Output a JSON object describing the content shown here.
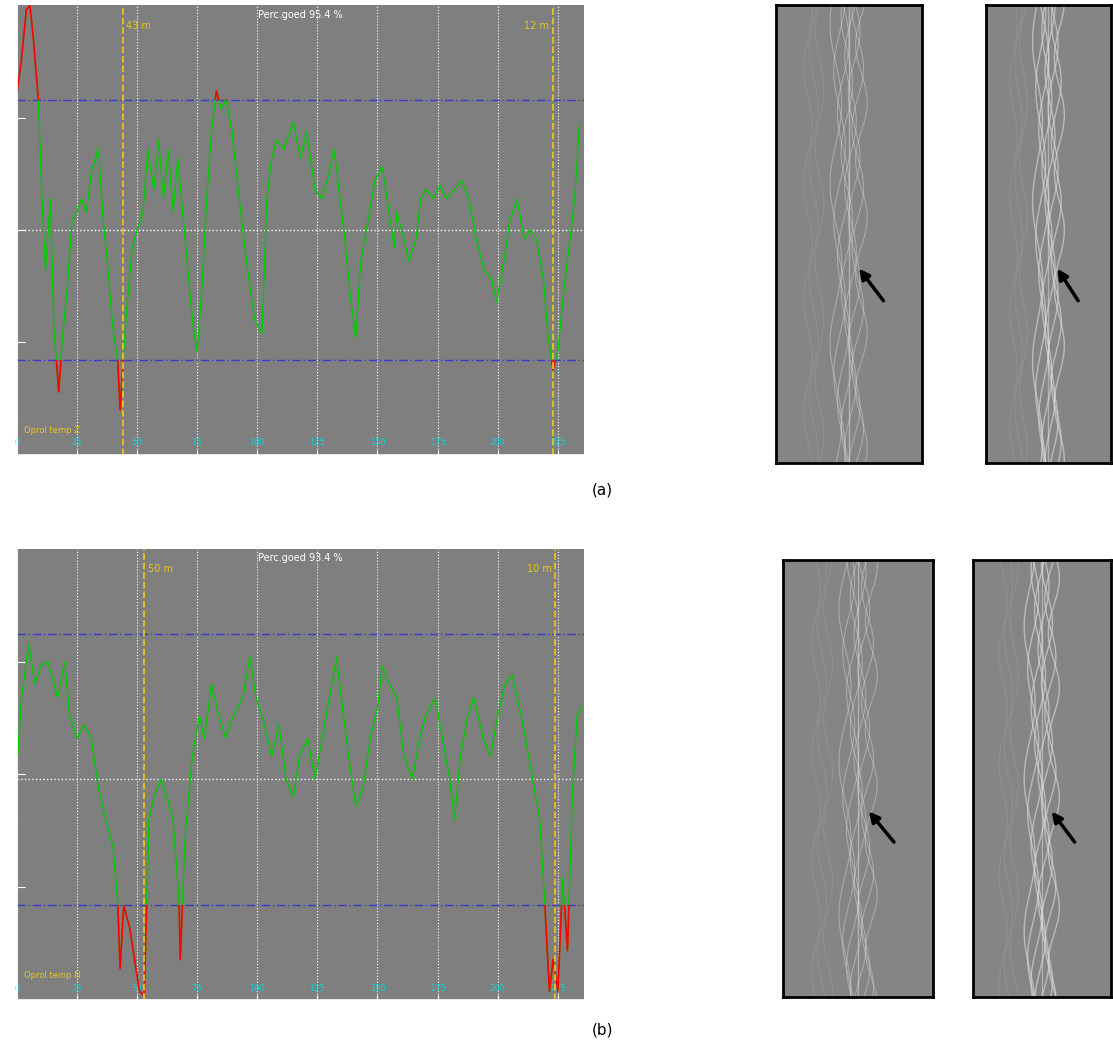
{
  "panel_labels": [
    "(a)",
    "(b)"
  ],
  "chart_data": [
    {
      "type": "line",
      "title": "Perc.goed 95.4 %",
      "corner_label": "Oprol temp Z",
      "x": [
        0,
        2,
        4,
        5.5,
        7,
        9,
        10.5,
        12,
        14,
        15.5,
        17.5,
        19,
        21,
        23,
        25,
        27,
        29,
        31,
        34,
        36,
        38,
        40,
        42,
        43,
        44.5,
        46,
        48,
        50,
        52.5,
        54.5,
        57,
        59,
        61,
        63,
        65,
        67,
        69,
        71.5,
        73.5,
        75,
        77,
        79,
        81,
        83,
        85,
        87,
        89.5,
        92.5,
        96,
        99,
        102,
        104,
        106,
        108,
        111,
        115,
        118,
        120.5,
        124,
        127,
        130,
        132,
        136,
        139,
        141,
        143,
        146,
        149,
        152,
        154,
        157,
        158,
        161,
        163,
        166,
        168,
        170,
        173.5,
        176,
        178.5,
        182,
        185,
        188,
        191,
        194.5,
        197.5,
        199.5,
        202.5,
        205,
        208,
        211,
        213.5,
        216,
        219,
        221,
        223,
        225,
        227,
        230,
        232,
        234
      ],
      "values": [
        80,
        88,
        99,
        100,
        92,
        79,
        57,
        41,
        57,
        28,
        14,
        26,
        37,
        52,
        54,
        57,
        54,
        63,
        68,
        52,
        41,
        28,
        21,
        10,
        23,
        34,
        46,
        50,
        54,
        68,
        59,
        70,
        57,
        68,
        54,
        66,
        54,
        39,
        28,
        23,
        37,
        57,
        72,
        81,
        77,
        79,
        72,
        57,
        41,
        30,
        27,
        57,
        66,
        70,
        68,
        74,
        66,
        72,
        59,
        57,
        63,
        68,
        50,
        34,
        26,
        43,
        52,
        61,
        64,
        57,
        46,
        54,
        48,
        43,
        48,
        57,
        59,
        57,
        60,
        57,
        59,
        61,
        57,
        48,
        41,
        39,
        34,
        43,
        52,
        57,
        48,
        50,
        48,
        39,
        26,
        19,
        23,
        34,
        48,
        57,
        74
      ],
      "color": "#00cc00",
      "alert_color": "#ff0000",
      "upper_limit": 79,
      "lower_limit": 21,
      "limit_color": "#3a3ad0",
      "reference": 50,
      "markers": [
        {
          "x": 44,
          "text": "43 m"
        },
        {
          "x": 223,
          "text": "12 m"
        }
      ],
      "marker_color": "#e6c619",
      "xlim": [
        0,
        236
      ],
      "xticks": [
        0,
        25,
        50,
        75,
        100,
        125,
        150,
        175,
        200,
        225
      ],
      "ylim": [
        0,
        100
      ],
      "yticks": [
        25,
        50,
        75
      ],
      "tick_labels": "x",
      "grid": true
    },
    {
      "type": "line",
      "title": "Perc.goed 93.4 %",
      "corner_label": "Oprol temp N",
      "x": [
        0,
        2,
        5,
        7.5,
        10,
        13,
        17,
        20,
        22,
        25,
        28,
        31,
        34,
        37,
        40,
        42,
        43,
        44.5,
        47,
        49,
        51,
        53,
        55,
        57,
        60,
        62.5,
        65,
        67.5,
        68,
        70,
        73,
        76,
        78,
        81,
        84,
        87,
        90,
        94,
        97,
        99.5,
        103,
        106,
        109,
        112,
        115,
        117.5,
        121,
        124,
        127,
        130,
        133,
        135,
        138,
        141,
        144,
        147,
        150,
        152,
        155,
        158,
        161,
        164.5,
        167.5,
        170,
        174,
        177,
        180,
        182,
        184.5,
        187.5,
        190,
        194,
        197,
        200,
        203,
        206,
        209,
        211.5,
        214.5,
        217.5,
        219.5,
        221.5,
        223,
        225,
        227,
        229,
        231,
        233,
        235
      ],
      "values": [
        51,
        67,
        79,
        70,
        74,
        75,
        67,
        75,
        63,
        58,
        61,
        58,
        47,
        40,
        34,
        22,
        7,
        21,
        16,
        9,
        2,
        1,
        40,
        45,
        49,
        45,
        40,
        22,
        9,
        36,
        54,
        63,
        58,
        70,
        63,
        58,
        63,
        67,
        76,
        67,
        61,
        54,
        61,
        49,
        45,
        54,
        58,
        49,
        58,
        67,
        76,
        67,
        54,
        43,
        47,
        58,
        65,
        74,
        70,
        67,
        54,
        49,
        58,
        63,
        67,
        58,
        49,
        40,
        54,
        63,
        67,
        58,
        54,
        63,
        70,
        72,
        65,
        58,
        49,
        40,
        22,
        2,
        9,
        2,
        27,
        11,
        45,
        63,
        65
      ],
      "color": "#00cc00",
      "alert_color": "#ff0000",
      "upper_limit": 81,
      "lower_limit": 21,
      "limit_color": "#3a3ad0",
      "reference": 49,
      "markers": [
        {
          "x": 53,
          "text": "50 m"
        },
        {
          "x": 224,
          "text": "10 m"
        }
      ],
      "marker_color": "#e6c619",
      "xlim": [
        0,
        236
      ],
      "xticks": [
        0,
        25,
        50,
        75,
        100,
        125,
        150,
        175,
        200,
        225
      ],
      "ylim": [
        0,
        100
      ],
      "yticks": [
        25,
        50,
        75
      ],
      "tick_labels": "x",
      "grid": true
    }
  ]
}
